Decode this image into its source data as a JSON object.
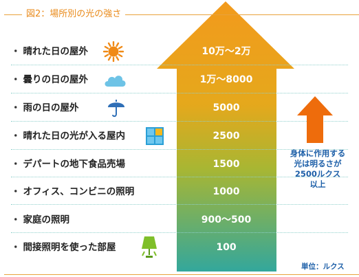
{
  "title": "図2：場所別の光の強さ",
  "rows": [
    {
      "label": "晴れた日の屋外",
      "value": "10万～2万",
      "icon": "sun-icon"
    },
    {
      "label": "曇りの日の屋外",
      "value": "1万～8000",
      "icon": "cloud-icon"
    },
    {
      "label": "雨の日の屋外",
      "value": "5000",
      "icon": "umbrella-icon"
    },
    {
      "label": "晴れた日の光が入る屋内",
      "value": "2500",
      "icon": "window-icon"
    },
    {
      "label": "デパートの地下食品売場",
      "value": "1500",
      "icon": ""
    },
    {
      "label": "オフィス、コンビニの照明",
      "value": "1000",
      "icon": ""
    },
    {
      "label": "家庭の照明",
      "value": "900～500",
      "icon": ""
    },
    {
      "label": "間接照明を使った部屋",
      "value": "100",
      "icon": "lamp-icon"
    }
  ],
  "bullet": "・",
  "note": {
    "lines": [
      "身体に作用する",
      "光は明るさが",
      "2500ルクス",
      "以上"
    ]
  },
  "unit": "単位：ルクス",
  "colors": {
    "arrow_top": "#f29a1c",
    "arrow_mid": "#c9b52a",
    "arrow_bottom": "#3aa69a",
    "side_arrow": "#ee6c0c",
    "note_text": "#1d5fa8",
    "title": "#e98a1a"
  }
}
